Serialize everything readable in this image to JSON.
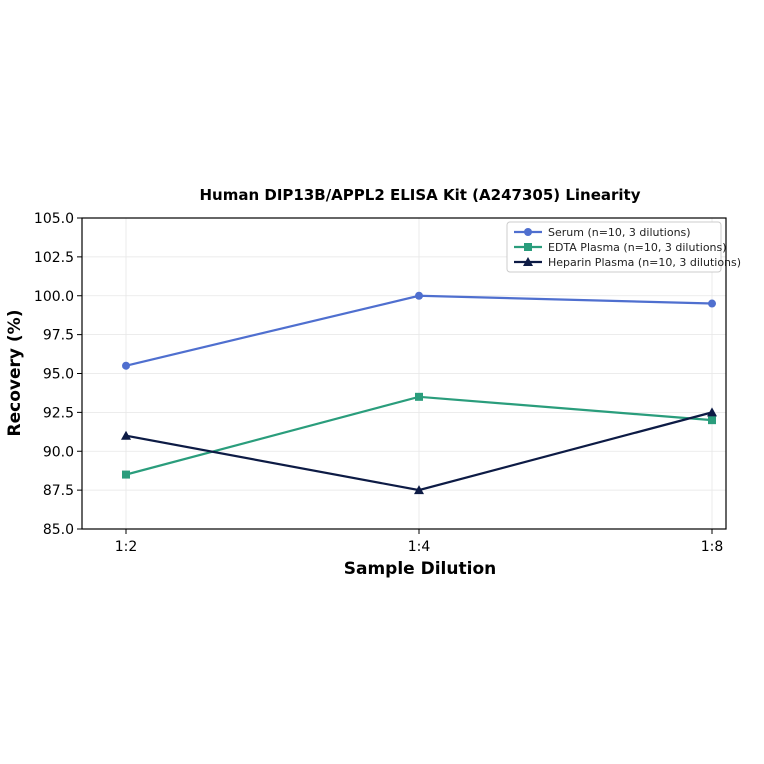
{
  "chart_data": {
    "type": "line",
    "title": "Human DIP13B/APPL2 ELISA Kit (A247305) Linearity",
    "xlabel": "Sample Dilution",
    "ylabel": "Recovery (%)",
    "categories": [
      "1:2",
      "1:4",
      "1:8"
    ],
    "ylim": [
      85.0,
      105.0
    ],
    "yticks": [
      "85.0",
      "87.5",
      "90.0",
      "92.5",
      "95.0",
      "97.5",
      "100.0",
      "102.5",
      "105.0"
    ],
    "grid": true,
    "legend_position": "top-right",
    "series": [
      {
        "name": "Serum (n=10, 3 dilutions)",
        "values": [
          95.5,
          100.0,
          99.5
        ],
        "color": "#4f6fcf",
        "marker": "circle"
      },
      {
        "name": "EDTA Plasma (n=10, 3 dilutions)",
        "values": [
          88.5,
          93.5,
          92.0
        ],
        "color": "#2a9d7c",
        "marker": "square"
      },
      {
        "name": "Heparin Plasma (n=10, 3 dilutions)",
        "values": [
          91.0,
          87.5,
          92.5
        ],
        "color": "#0d1b45",
        "marker": "triangle"
      }
    ]
  }
}
